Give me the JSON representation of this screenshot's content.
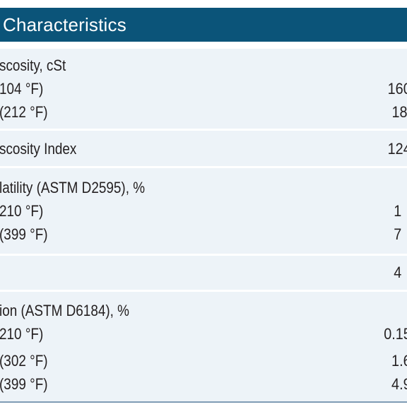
{
  "header": {
    "title": "Characteristics"
  },
  "sections": [
    {
      "rows": [
        {
          "label": "scosity, cSt",
          "value": ""
        },
        {
          "label": "104 °F)",
          "value": "160"
        },
        {
          "label": "(212 °F)",
          "value": "18"
        }
      ]
    },
    {
      "rows": [
        {
          "label": "scosity Index",
          "value": "124"
        }
      ]
    },
    {
      "rows": [
        {
          "label": "latility (ASTM D2595), %",
          "value": ""
        },
        {
          "label": "210 °F)",
          "value": "1"
        },
        {
          "label": "(399 °F)",
          "value": "7"
        }
      ]
    },
    {
      "rows": [
        {
          "label": "",
          "value": "4"
        }
      ]
    },
    {
      "rows": [
        {
          "label": "ion (ASTM D6184), %",
          "value": ""
        },
        {
          "label": "210 °F)",
          "value": "0.15"
        },
        {
          "label": "(302 °F)",
          "value": "1.6"
        },
        {
          "label": "(399 °F)",
          "value": "4.9"
        }
      ]
    }
  ],
  "colors": {
    "header_bg": "#0b5479",
    "header_text": "#ffffff",
    "row_bg": "#edf3f8",
    "text": "#231f20",
    "divider": "#ffffff",
    "bottom_rule": "#7f9cb5"
  }
}
